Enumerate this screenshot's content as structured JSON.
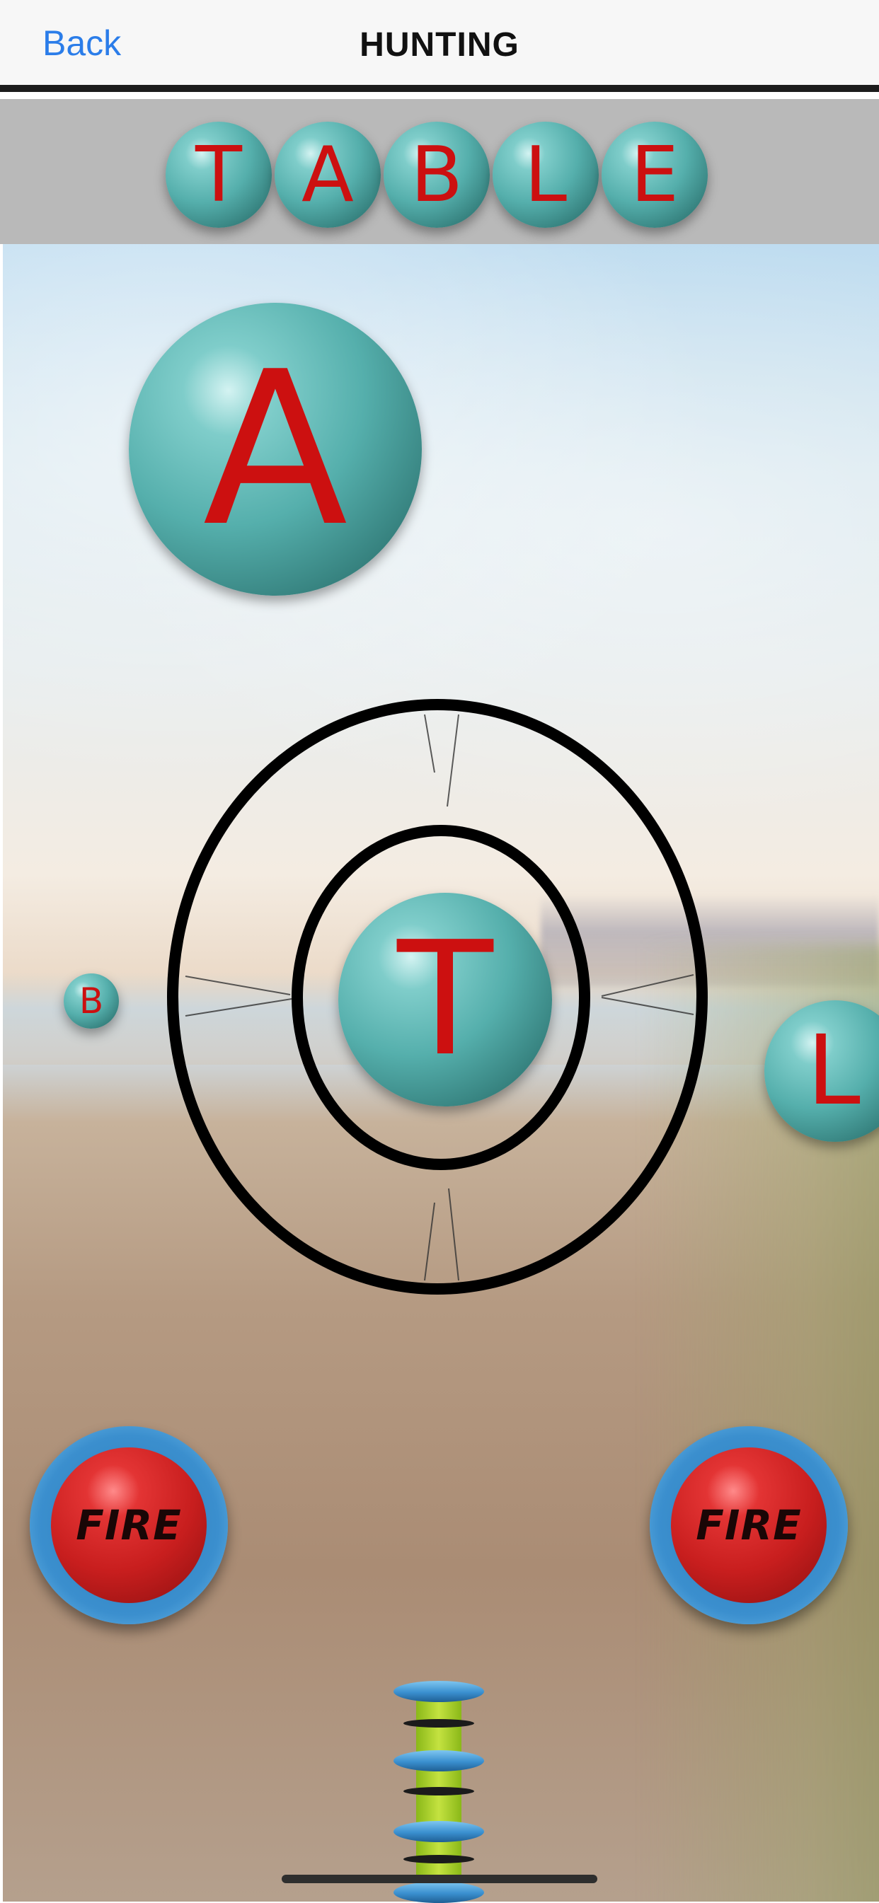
{
  "navbar": {
    "back_label": "Back",
    "title": "HUNTING"
  },
  "target_word": {
    "letters": [
      "T",
      "A",
      "B",
      "L",
      "E"
    ]
  },
  "scene": {
    "floating_balls": {
      "large": "A",
      "center": "T",
      "small": "B",
      "side": "L"
    }
  },
  "controls": {
    "fire_left_label": "FIRE",
    "fire_right_label": "FIRE"
  },
  "colors": {
    "ball": "#55afac",
    "letter": "#cc1010",
    "fire": "#c81e1e",
    "fire_ring": "#3b8fce",
    "link": "#2b7de9",
    "word_bar": "#b9b9b9",
    "meter": "#c4e240"
  },
  "icons": {
    "target": "crosshair-target-icon",
    "power": "power-meter-icon"
  }
}
